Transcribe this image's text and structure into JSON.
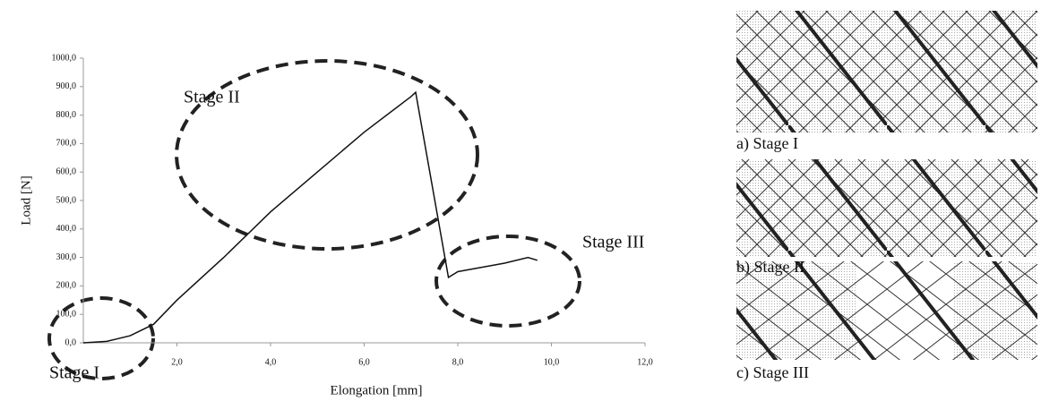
{
  "chart_data": {
    "type": "line",
    "xlabel": "Elongation [mm]",
    "ylabel": "Load [N]",
    "x": [
      0,
      0.5,
      1.0,
      1.5,
      2.0,
      3.0,
      4.0,
      5.0,
      6.0,
      7.0,
      7.1,
      7.8,
      8.0,
      8.5,
      9.0,
      9.5,
      9.7
    ],
    "series": [
      {
        "color": "#111111",
        "values": [
          0,
          5,
          25,
          65,
          150,
          300,
          460,
          600,
          740,
          865,
          880,
          230,
          250,
          265,
          280,
          300,
          290
        ]
      }
    ],
    "xlim": [
      0,
      12
    ],
    "xticks": [
      {
        "value": 2,
        "label": "2,0"
      },
      {
        "value": 4,
        "label": "4,0"
      },
      {
        "value": 6,
        "label": "6,0"
      },
      {
        "value": 8,
        "label": "8,0"
      },
      {
        "value": 10,
        "label": "10,0"
      },
      {
        "value": 12,
        "label": "12,0"
      }
    ],
    "ylim": [
      0,
      1000
    ],
    "yticks": [
      {
        "value": 0,
        "label": "0,0"
      },
      {
        "value": 100,
        "label": "100,0"
      },
      {
        "value": 200,
        "label": "200,0"
      },
      {
        "value": 300,
        "label": "300,0"
      },
      {
        "value": 400,
        "label": "400,0"
      },
      {
        "value": 500,
        "label": "500,0"
      },
      {
        "value": 600,
        "label": "600,0"
      },
      {
        "value": 700,
        "label": "700,0"
      },
      {
        "value": 800,
        "label": "800,0"
      },
      {
        "value": 900,
        "label": "900,0"
      },
      {
        "value": 1000,
        "label": "1000,0"
      }
    ],
    "annotations": [
      "Stage I",
      "Stage II",
      "Stage III"
    ]
  },
  "panels": {
    "captions": [
      "a) Stage I",
      "b)  Stage  II",
      "c) Stage III"
    ]
  }
}
